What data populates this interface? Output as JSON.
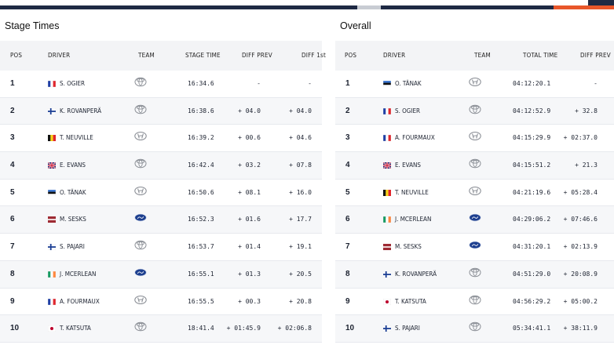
{
  "stage": {
    "title": "Stage Times",
    "headers": {
      "pos": "POS",
      "driver": "DRIVER",
      "team": "TEAM",
      "time": "STAGE TIME",
      "diff_prev": "DIFF PREV",
      "diff_first": "DIFF 1st"
    },
    "rows": [
      {
        "pos": "1",
        "flag": "france-flag",
        "driver": "S. OGIER",
        "team": "toyota-icon",
        "time": "16:34.6",
        "diff_prev": "-",
        "diff_first": "-"
      },
      {
        "pos": "2",
        "flag": "finland-flag",
        "driver": "K. ROVANPERÄ",
        "team": "toyota-icon",
        "time": "16:38.6",
        "diff_prev": "+ 04.0",
        "diff_first": "+ 04.0"
      },
      {
        "pos": "3",
        "flag": "belgium-flag",
        "driver": "T. NEUVILLE",
        "team": "hyundai-icon",
        "time": "16:39.2",
        "diff_prev": "+ 00.6",
        "diff_first": "+ 04.6"
      },
      {
        "pos": "4",
        "flag": "uk-flag",
        "driver": "E. EVANS",
        "team": "toyota-icon",
        "time": "16:42.4",
        "diff_prev": "+ 03.2",
        "diff_first": "+ 07.8"
      },
      {
        "pos": "5",
        "flag": "estonia-flag",
        "driver": "O. TÄNAK",
        "team": "hyundai-icon",
        "time": "16:50.6",
        "diff_prev": "+ 08.1",
        "diff_first": "+ 16.0"
      },
      {
        "pos": "6",
        "flag": "latvia-flag",
        "driver": "M. SESKS",
        "team": "ford-icon",
        "time": "16:52.3",
        "diff_prev": "+ 01.6",
        "diff_first": "+ 17.7"
      },
      {
        "pos": "7",
        "flag": "finland-flag",
        "driver": "S. PAJARI",
        "team": "toyota-icon",
        "time": "16:53.7",
        "diff_prev": "+ 01.4",
        "diff_first": "+ 19.1"
      },
      {
        "pos": "8",
        "flag": "ireland-flag",
        "driver": "J. MCERLEAN",
        "team": "ford-icon",
        "time": "16:55.1",
        "diff_prev": "+ 01.3",
        "diff_first": "+ 20.5"
      },
      {
        "pos": "9",
        "flag": "france-flag",
        "driver": "A. FOURMAUX",
        "team": "hyundai-icon",
        "time": "16:55.5",
        "diff_prev": "+ 00.3",
        "diff_first": "+ 20.8"
      },
      {
        "pos": "10",
        "flag": "japan-flag",
        "driver": "T. KATSUTA",
        "team": "toyota-icon",
        "time": "18:41.4",
        "diff_prev": "+ 01:45.9",
        "diff_first": "+ 02:06.8"
      }
    ]
  },
  "overall": {
    "title": "Overall",
    "headers": {
      "pos": "POS",
      "driver": "DRIVER",
      "team": "TEAM",
      "time": "TOTAL TIME",
      "diff_prev": "DIFF PREV"
    },
    "rows": [
      {
        "pos": "1",
        "flag": "estonia-flag",
        "driver": "O. TÄNAK",
        "team": "hyundai-icon",
        "time": "04:12:20.1",
        "diff_prev": "-"
      },
      {
        "pos": "2",
        "flag": "france-flag",
        "driver": "S. OGIER",
        "team": "toyota-icon",
        "time": "04:12:52.9",
        "diff_prev": "+ 32.8"
      },
      {
        "pos": "3",
        "flag": "france-flag",
        "driver": "A. FOURMAUX",
        "team": "hyundai-icon",
        "time": "04:15:29.9",
        "diff_prev": "+ 02:37.0"
      },
      {
        "pos": "4",
        "flag": "uk-flag",
        "driver": "E. EVANS",
        "team": "toyota-icon",
        "time": "04:15:51.2",
        "diff_prev": "+ 21.3"
      },
      {
        "pos": "5",
        "flag": "belgium-flag",
        "driver": "T. NEUVILLE",
        "team": "hyundai-icon",
        "time": "04:21:19.6",
        "diff_prev": "+ 05:28.4"
      },
      {
        "pos": "6",
        "flag": "ireland-flag",
        "driver": "J. MCERLEAN",
        "team": "ford-icon",
        "time": "04:29:06.2",
        "diff_prev": "+ 07:46.6"
      },
      {
        "pos": "7",
        "flag": "latvia-flag",
        "driver": "M. SESKS",
        "team": "ford-icon",
        "time": "04:31:20.1",
        "diff_prev": "+ 02:13.9"
      },
      {
        "pos": "8",
        "flag": "finland-flag",
        "driver": "K. ROVANPERÄ",
        "team": "toyota-icon",
        "time": "04:51:29.0",
        "diff_prev": "+ 20:08.9"
      },
      {
        "pos": "9",
        "flag": "japan-flag",
        "driver": "T. KATSUTA",
        "team": "toyota-icon",
        "time": "04:56:29.2",
        "diff_prev": "+ 05:00.2"
      },
      {
        "pos": "10",
        "flag": "finland-flag",
        "driver": "S. PAJARI",
        "team": "toyota-icon",
        "time": "05:34:41.1",
        "diff_prev": "+ 38:11.9"
      }
    ]
  },
  "colors": {
    "header_bg": "#f3f4f6",
    "accent_orange": "#e8572a",
    "bar_navy": "#1f2a44"
  }
}
